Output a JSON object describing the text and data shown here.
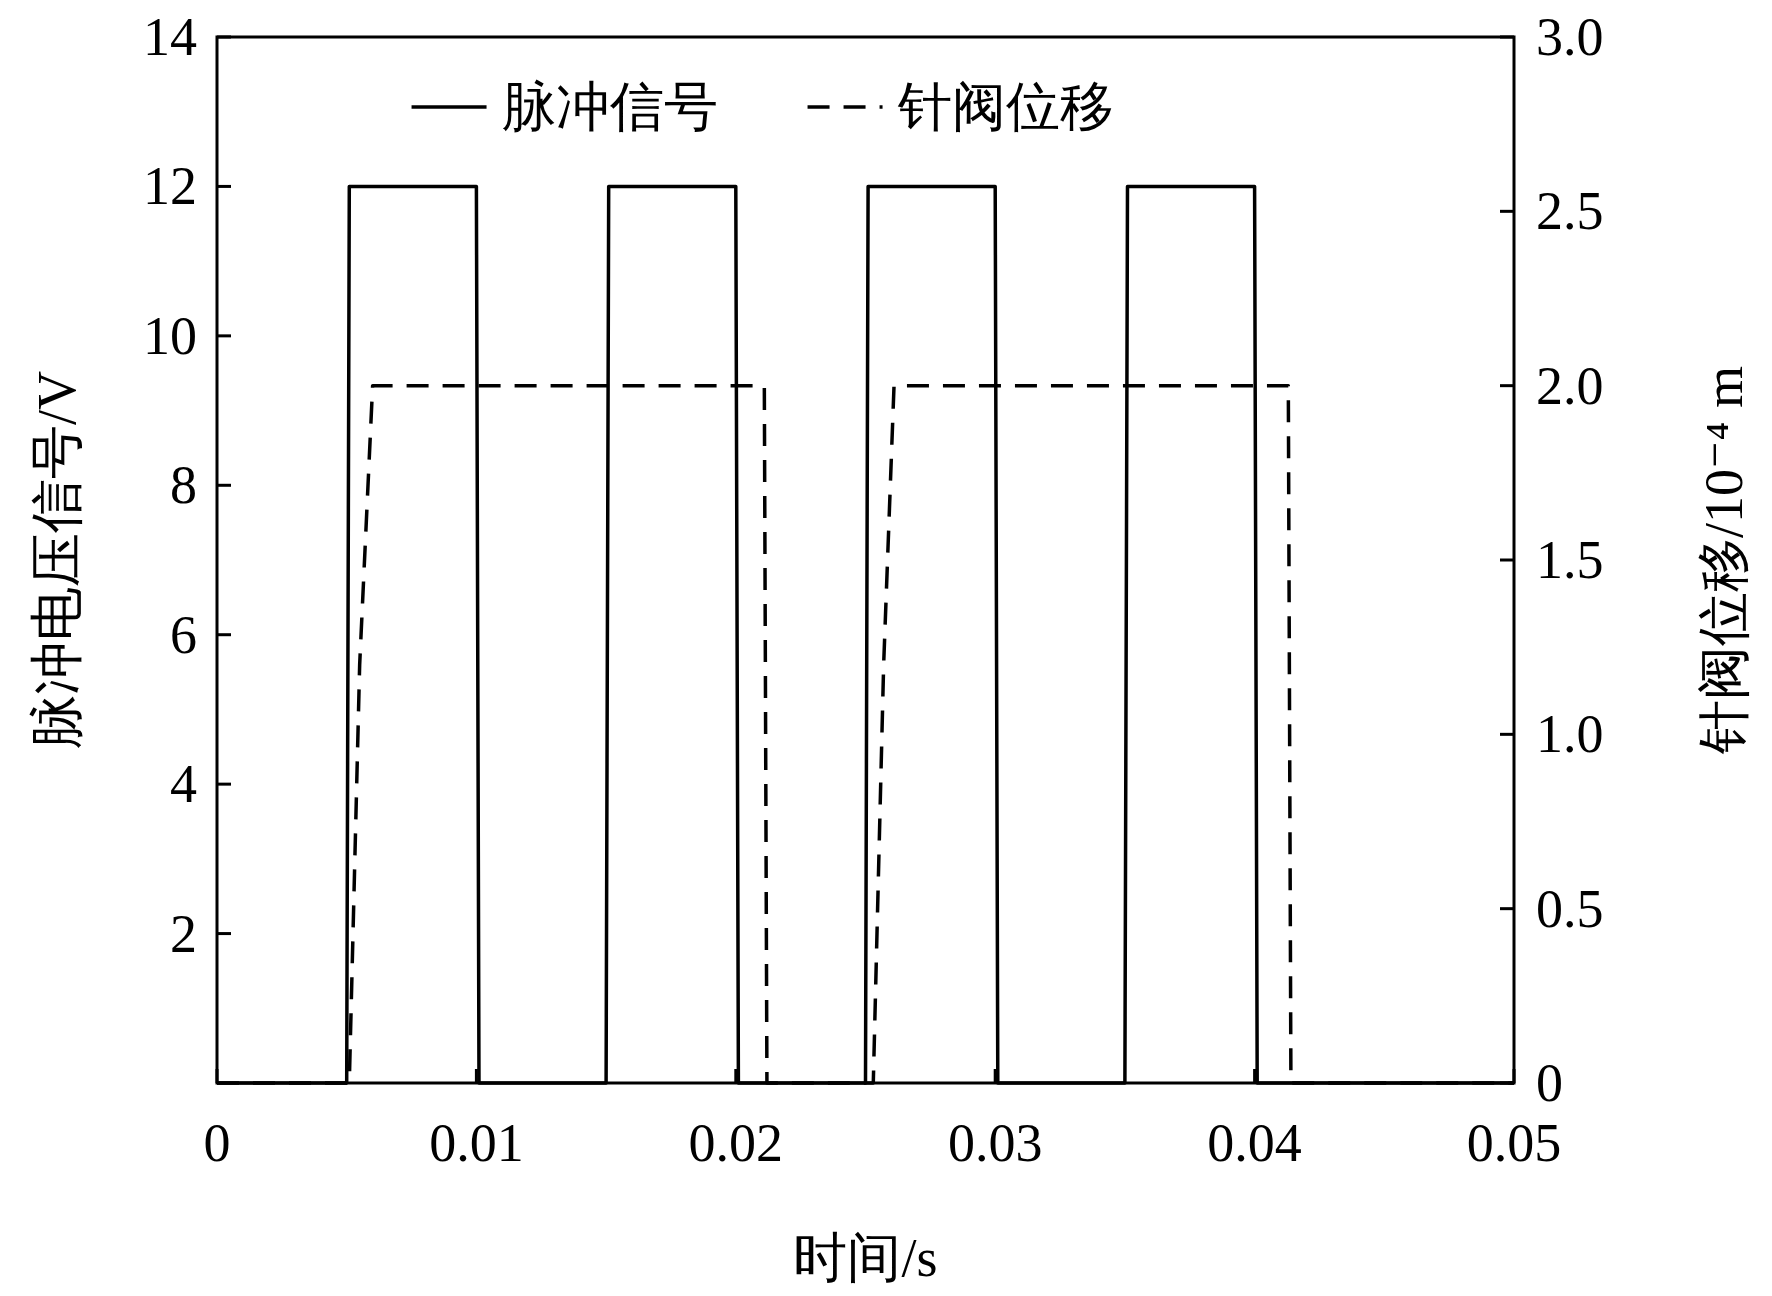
{
  "chart_data": {
    "type": "line",
    "xlabel": "时间/s",
    "ylabel": "脉冲电压信号/V",
    "y2label": "针阀位移/10⁻⁴ m",
    "xlim": [
      0,
      0.05
    ],
    "xticks": [
      0,
      0.01,
      0.02,
      0.03,
      0.04,
      0.05
    ],
    "ylim": [
      0,
      14
    ],
    "yticks": [
      2,
      4,
      6,
      8,
      10,
      12,
      14
    ],
    "y2lim": [
      0,
      3
    ],
    "y2ticks": [
      0,
      0.5,
      {
        "value": 1,
        "label": "1.0"
      },
      1.5,
      {
        "value": 2,
        "label": "2.0"
      },
      2.5,
      {
        "value": 3,
        "label": "3.0"
      }
    ],
    "legend": "top",
    "series": [
      {
        "name": "脉冲信号",
        "color": "#000000",
        "line_style": "solid",
        "x": [
          0,
          0.005,
          0.0051,
          0.01,
          0.0101,
          0.015,
          0.0151,
          0.02,
          0.0201,
          0.025,
          0.0251,
          0.03,
          0.0301,
          0.035,
          0.0351,
          0.04,
          0.0401,
          0.05
        ],
        "values": [
          0,
          0,
          12,
          12,
          0,
          0,
          12,
          12,
          0,
          0,
          12,
          12,
          0,
          0,
          12,
          12,
          0,
          0
        ]
      },
      {
        "name": "针阀位移",
        "color": "#000000",
        "line_style": "dashed",
        "axis": "y2",
        "x": [
          0,
          0.0051,
          0.0055,
          0.006,
          0.0211,
          0.0212,
          0.0253,
          0.0257,
          0.0261,
          0.0413,
          0.0414,
          0.05
        ],
        "values": [
          0,
          0,
          1.2,
          2.0,
          2.0,
          0,
          0,
          1.2,
          2.0,
          2.0,
          0,
          0
        ]
      }
    ]
  }
}
